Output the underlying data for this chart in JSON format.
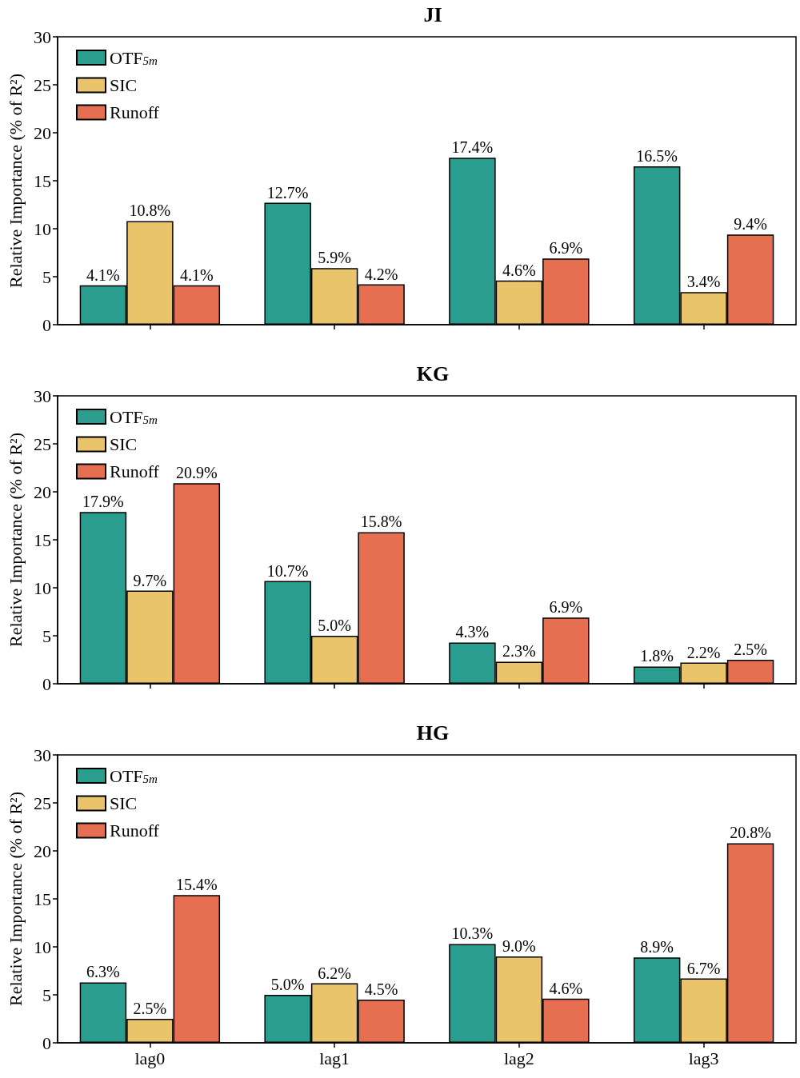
{
  "chart_data": [
    {
      "type": "bar",
      "title": "JI",
      "ylabel": "Relative Importance (% of R²)",
      "categories": [
        null,
        null,
        null,
        null
      ],
      "ylim": [
        0,
        30
      ],
      "yticks": [
        0,
        5,
        10,
        15,
        20,
        25,
        30
      ],
      "grid": false,
      "legend": "top left",
      "series": [
        {
          "name": "OTF$_{5m}$",
          "color": "#2a9d8f",
          "values": [
            4.1,
            12.7,
            17.4,
            16.5
          ],
          "value_labels": [
            "4.1%",
            "12.7%",
            "17.4%",
            "16.5%"
          ]
        },
        {
          "name": "SIC",
          "color": "#e9c46a",
          "values": [
            10.8,
            5.9,
            4.6,
            3.4
          ],
          "value_labels": [
            "10.8%",
            "5.9%",
            "4.6%",
            "3.4%"
          ]
        },
        {
          "name": "Runoff",
          "color": "#e76f51",
          "values": [
            4.1,
            4.2,
            6.9,
            9.4
          ],
          "value_labels": [
            "4.1%",
            "4.2%",
            "6.9%",
            "9.4%"
          ]
        }
      ]
    },
    {
      "type": "bar",
      "title": "KG",
      "ylabel": "Relative Importance (% of R²)",
      "categories": [
        null,
        null,
        null,
        null
      ],
      "ylim": [
        0,
        30
      ],
      "yticks": [
        0,
        5,
        10,
        15,
        20,
        25,
        30
      ],
      "grid": false,
      "legend": "top left",
      "series": [
        {
          "name": "OTF$_{5m}$",
          "color": "#2a9d8f",
          "values": [
            17.9,
            10.7,
            4.3,
            1.8
          ],
          "value_labels": [
            "17.9%",
            "10.7%",
            "4.3%",
            "1.8%"
          ]
        },
        {
          "name": "SIC",
          "color": "#e9c46a",
          "values": [
            9.7,
            5.0,
            2.3,
            2.2
          ],
          "value_labels": [
            "9.7%",
            "5.0%",
            "2.3%",
            "2.2%"
          ]
        },
        {
          "name": "Runoff",
          "color": "#e76f51",
          "values": [
            20.9,
            15.8,
            6.9,
            2.5
          ],
          "value_labels": [
            "20.9%",
            "15.8%",
            "6.9%",
            "2.5%"
          ]
        }
      ]
    },
    {
      "type": "bar",
      "title": "HG",
      "ylabel": "Relative Importance (% of R²)",
      "categories": [
        "lag0",
        "lag1",
        "lag2",
        "lag3"
      ],
      "ylim": [
        0,
        30
      ],
      "yticks": [
        0,
        5,
        10,
        15,
        20,
        25,
        30
      ],
      "grid": false,
      "legend": "top left",
      "series": [
        {
          "name": "OTF$_{5m}$",
          "color": "#2a9d8f",
          "values": [
            6.3,
            5.0,
            10.3,
            8.9
          ],
          "value_labels": [
            "6.3%",
            "5.0%",
            "10.3%",
            "8.9%"
          ]
        },
        {
          "name": "SIC",
          "color": "#e9c46a",
          "values": [
            2.5,
            6.2,
            9.0,
            6.7
          ],
          "value_labels": [
            "2.5%",
            "6.2%",
            "9.0%",
            "6.7%"
          ]
        },
        {
          "name": "Runoff",
          "color": "#e76f51",
          "values": [
            15.4,
            4.5,
            4.6,
            20.8
          ],
          "value_labels": [
            "15.4%",
            "4.5%",
            "4.6%",
            "20.8%"
          ]
        }
      ]
    }
  ]
}
